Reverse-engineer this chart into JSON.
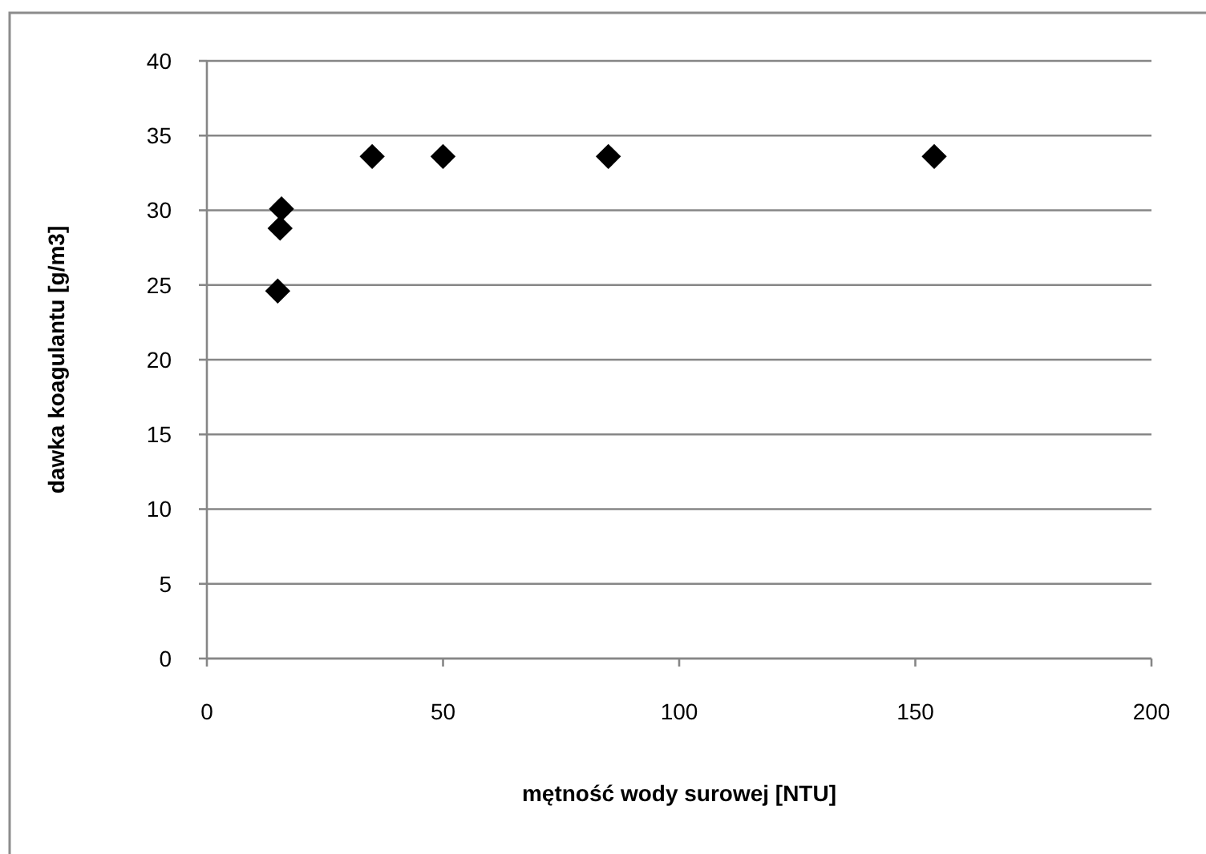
{
  "chart_data": {
    "type": "scatter",
    "xlabel": "mętność wody surowej [NTU]",
    "ylabel": "dawka koagulantu [g/m3]",
    "x": [
      15,
      15.5,
      15.8,
      35,
      50,
      85,
      154
    ],
    "values": [
      24.6,
      28.8,
      30.1,
      33.6,
      33.6,
      33.6,
      33.6
    ],
    "color": "#000000",
    "marker": "diamond",
    "xlim": [
      0,
      200
    ],
    "xticks": [
      0,
      50,
      100,
      150,
      200
    ],
    "ylim": [
      0,
      40
    ],
    "yticks": [
      0,
      5,
      10,
      15,
      20,
      25,
      30,
      35,
      40
    ],
    "grid": "y"
  }
}
